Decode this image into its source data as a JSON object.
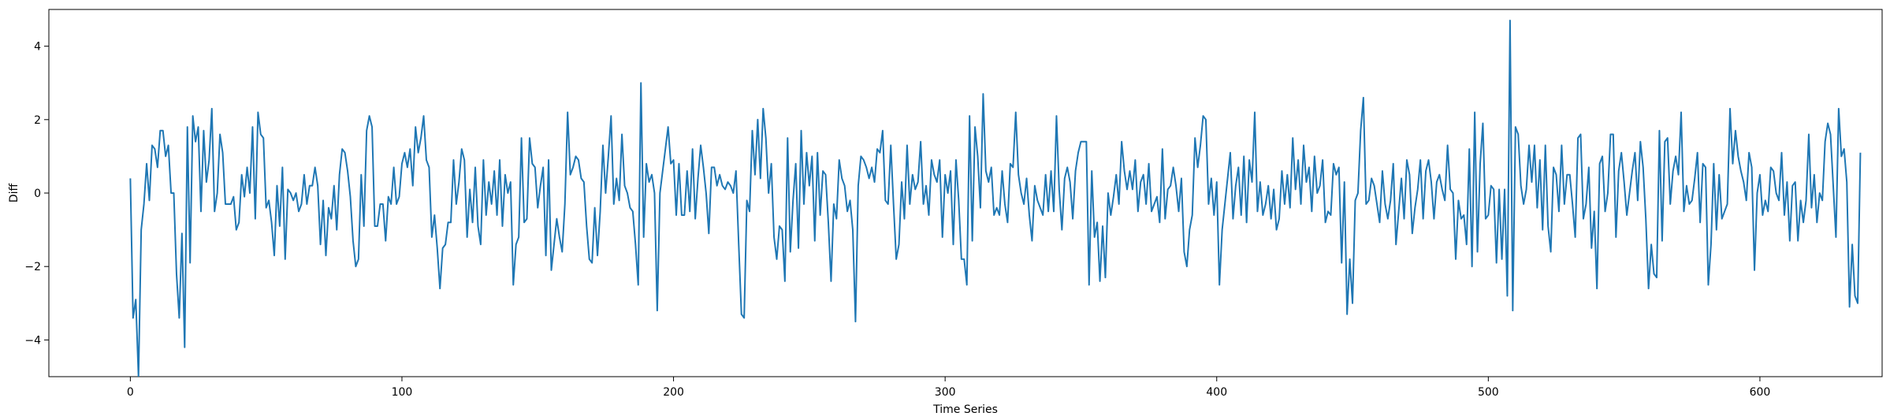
{
  "chart_data": {
    "type": "line",
    "title": "",
    "xlabel": "Time Series",
    "ylabel": "Diff",
    "xlim": [
      -30,
      645
    ],
    "ylim": [
      -5,
      5
    ],
    "xticks": [
      0,
      100,
      200,
      300,
      400,
      500,
      600
    ],
    "yticks": [
      -4,
      -2,
      0,
      2,
      4
    ],
    "grid": false,
    "legend": "none",
    "series": [
      {
        "color": "#1f77b4",
        "x_start": 0,
        "x_step": 1,
        "values": [
          0.4,
          -3.4,
          -2.9,
          -5.0,
          -1.0,
          -0.3,
          0.8,
          -0.2,
          1.3,
          1.2,
          0.7,
          1.7,
          1.7,
          1.0,
          1.3,
          0.0,
          0.0,
          -2.2,
          -3.4,
          -1.1,
          -4.2,
          1.8,
          -1.9,
          2.1,
          1.4,
          1.8,
          -0.5,
          1.7,
          0.3,
          0.9,
          2.3,
          -0.5,
          0.0,
          1.6,
          1.1,
          -0.3,
          -0.3,
          -0.3,
          -0.1,
          -1.0,
          -0.8,
          0.5,
          -0.1,
          0.7,
          0.0,
          1.8,
          -0.7,
          2.2,
          1.6,
          1.5,
          -0.4,
          -0.2,
          -0.8,
          -1.7,
          0.2,
          -0.9,
          0.7,
          -1.8,
          0.1,
          0.0,
          -0.2,
          0.0,
          -0.5,
          -0.3,
          0.5,
          -0.3,
          0.2,
          0.2,
          0.7,
          0.2,
          -1.4,
          -0.2,
          -1.7,
          -0.4,
          -0.7,
          0.2,
          -1.0,
          0.5,
          1.2,
          1.1,
          0.6,
          -0.1,
          -1.3,
          -2.0,
          -1.8,
          0.5,
          -0.9,
          1.7,
          2.1,
          1.8,
          -0.9,
          -0.9,
          -0.3,
          -0.3,
          -1.3,
          -0.1,
          -0.3,
          0.7,
          -0.3,
          -0.1,
          0.8,
          1.1,
          0.7,
          1.2,
          0.2,
          1.8,
          1.1,
          1.5,
          2.1,
          0.9,
          0.7,
          -1.2,
          -0.6,
          -1.5,
          -2.6,
          -1.5,
          -1.4,
          -0.8,
          -0.8,
          0.9,
          -0.3,
          0.3,
          1.2,
          0.9,
          -1.2,
          0.1,
          -0.8,
          0.7,
          -0.9,
          -1.4,
          0.9,
          -0.6,
          0.3,
          -0.3,
          0.6,
          -0.6,
          0.9,
          -0.9,
          0.5,
          0.0,
          0.3,
          -2.5,
          -1.4,
          -1.2,
          1.5,
          -0.8,
          -0.7,
          1.5,
          0.8,
          0.7,
          -0.4,
          0.2,
          0.7,
          -1.7,
          0.9,
          -2.1,
          -1.4,
          -0.7,
          -1.2,
          -1.6,
          -0.3,
          2.2,
          0.5,
          0.7,
          1.0,
          0.9,
          0.4,
          0.3,
          -0.9,
          -1.8,
          -1.9,
          -0.4,
          -1.7,
          -0.5,
          1.3,
          0.0,
          1.0,
          2.1,
          -0.3,
          0.4,
          -0.2,
          1.6,
          0.2,
          0.0,
          -0.4,
          -0.5,
          -1.4,
          -2.5,
          3.0,
          -1.2,
          0.8,
          0.3,
          0.5,
          0.0,
          -3.2,
          0.0,
          0.6,
          1.2,
          1.8,
          0.8,
          0.9,
          -0.6,
          0.8,
          -0.6,
          -0.6,
          0.6,
          -0.5,
          1.2,
          -0.7,
          0.4,
          1.3,
          0.7,
          0.0,
          -1.1,
          0.7,
          0.7,
          0.2,
          0.5,
          0.2,
          0.1,
          0.3,
          0.2,
          0.0,
          0.6,
          -1.4,
          -3.3,
          -3.4,
          -0.2,
          -0.5,
          1.7,
          0.5,
          2.0,
          0.4,
          2.3,
          1.5,
          0.0,
          0.8,
          -1.2,
          -1.8,
          -0.9,
          -1.0,
          -2.4,
          1.5,
          -1.6,
          -0.2,
          0.8,
          -1.5,
          1.7,
          -0.3,
          1.1,
          0.2,
          1.0,
          -1.3,
          1.1,
          -0.6,
          0.6,
          0.5,
          -0.8,
          -2.4,
          -0.3,
          -0.7,
          0.9,
          0.4,
          0.2,
          -0.5,
          -0.2,
          -1.0,
          -3.5,
          0.2,
          1.0,
          0.9,
          0.7,
          0.4,
          0.7,
          0.3,
          1.2,
          1.1,
          1.7,
          -0.2,
          -0.3,
          1.3,
          -0.3,
          -1.8,
          -1.4,
          0.3,
          -0.7,
          1.3,
          -0.3,
          0.5,
          0.1,
          0.3,
          1.4,
          -0.3,
          0.2,
          -0.6,
          0.9,
          0.5,
          0.3,
          0.9,
          -1.2,
          0.5,
          0.0,
          0.6,
          -1.4,
          0.9,
          -0.2,
          -1.8,
          -1.8,
          -2.5,
          2.1,
          -1.3,
          1.8,
          1.0,
          -0.4,
          2.7,
          0.6,
          0.3,
          0.7,
          -0.6,
          -0.4,
          -0.6,
          0.6,
          -0.3,
          -0.8,
          0.8,
          0.7,
          2.2,
          0.5,
          0.0,
          -0.3,
          0.4,
          -0.6,
          -1.3,
          0.2,
          -0.2,
          -0.4,
          -0.6,
          0.5,
          -0.5,
          0.6,
          -0.5,
          2.1,
          0.1,
          -1.0,
          0.4,
          0.7,
          0.3,
          -0.7,
          0.6,
          1.1,
          1.4,
          1.4,
          1.4,
          -2.5,
          0.6,
          -1.2,
          -0.8,
          -2.4,
          -0.9,
          -2.3,
          0.0,
          -0.6,
          -0.1,
          0.5,
          -0.3,
          1.4,
          0.6,
          0.1,
          0.6,
          0.1,
          0.9,
          -0.5,
          0.3,
          0.5,
          -0.3,
          0.8,
          -0.5,
          -0.3,
          -0.1,
          -0.8,
          1.2,
          -0.7,
          0.1,
          0.2,
          0.7,
          0.2,
          -0.5,
          0.4,
          -1.6,
          -2.0,
          -1.0,
          -0.6,
          1.5,
          0.7,
          1.3,
          2.1,
          2.0,
          -0.3,
          0.4,
          -0.6,
          0.3,
          -2.5,
          -1.0,
          -0.3,
          0.4,
          1.1,
          -0.7,
          0.2,
          0.7,
          -0.6,
          1.0,
          -0.8,
          0.9,
          0.3,
          2.2,
          -0.5,
          0.3,
          -0.6,
          -0.3,
          0.2,
          -0.7,
          0.1,
          -1.0,
          -0.7,
          0.6,
          -0.3,
          0.5,
          -0.4,
          1.5,
          0.1,
          0.9,
          -0.3,
          1.3,
          0.3,
          0.7,
          -0.5,
          1.0,
          0.0,
          0.2,
          0.9,
          -0.8,
          -0.5,
          -0.6,
          0.8,
          0.5,
          0.7,
          -1.9,
          0.3,
          -3.3,
          -1.8,
          -3.0,
          -0.2,
          0.0,
          1.7,
          2.6,
          -0.3,
          -0.2,
          0.4,
          0.2,
          -0.3,
          -0.8,
          0.6,
          -0.3,
          -0.7,
          -0.2,
          0.8,
          -1.4,
          -0.5,
          0.4,
          -0.7,
          0.9,
          0.5,
          -1.1,
          -0.4,
          0.1,
          0.9,
          -0.7,
          0.6,
          0.9,
          0.3,
          -0.7,
          0.3,
          0.5,
          0.1,
          -0.2,
          1.3,
          0.1,
          0.0,
          -1.8,
          -0.2,
          -0.7,
          -0.6,
          -1.4,
          1.2,
          -2.0,
          2.2,
          -1.6,
          0.8,
          1.9,
          -0.7,
          -0.6,
          0.2,
          0.1,
          -1.9,
          0.1,
          -1.8,
          0.1,
          -2.8,
          4.7,
          -3.2,
          1.8,
          1.6,
          0.2,
          -0.3,
          0.1,
          1.3,
          0.3,
          1.3,
          -0.4,
          0.9,
          -1.0,
          1.3,
          -0.9,
          -1.6,
          0.7,
          0.5,
          -0.5,
          1.3,
          -0.3,
          0.5,
          0.5,
          -0.3,
          -1.2,
          1.5,
          1.6,
          -0.7,
          -0.3,
          0.7,
          -1.5,
          -0.5,
          -2.6,
          0.8,
          1.0,
          -0.5,
          0.0,
          1.6,
          1.6,
          -1.2,
          0.6,
          1.1,
          0.3,
          -0.6,
          0.0,
          0.6,
          1.1,
          -0.2,
          1.4,
          0.7,
          -0.7,
          -2.6,
          -1.4,
          -2.2,
          -2.3,
          1.7,
          -1.3,
          1.4,
          1.5,
          -0.3,
          0.6,
          1.0,
          0.5,
          2.2,
          -0.5,
          0.2,
          -0.3,
          -0.2,
          0.4,
          1.1,
          -0.8,
          0.8,
          0.7,
          -2.5,
          -1.4,
          0.8,
          -1.0,
          0.5,
          -0.7,
          -0.5,
          -0.3,
          2.3,
          0.8,
          1.7,
          1.0,
          0.6,
          0.3,
          -0.2,
          1.1,
          0.7,
          -2.1,
          0.0,
          0.5,
          -0.6,
          -0.2,
          -0.5,
          0.7,
          0.6,
          0.0,
          -0.2,
          1.1,
          -0.6,
          0.3,
          -1.3,
          0.2,
          0.3,
          -1.3,
          -0.2,
          -0.8,
          -0.2,
          1.6,
          -0.4,
          0.5,
          -0.8,
          0.0,
          -0.2,
          1.4,
          1.9,
          1.6,
          0.2,
          -1.2,
          2.3,
          1.0,
          1.2,
          0.3,
          -3.1,
          -1.4,
          -2.8,
          -3.0,
          1.1
        ]
      }
    ]
  }
}
